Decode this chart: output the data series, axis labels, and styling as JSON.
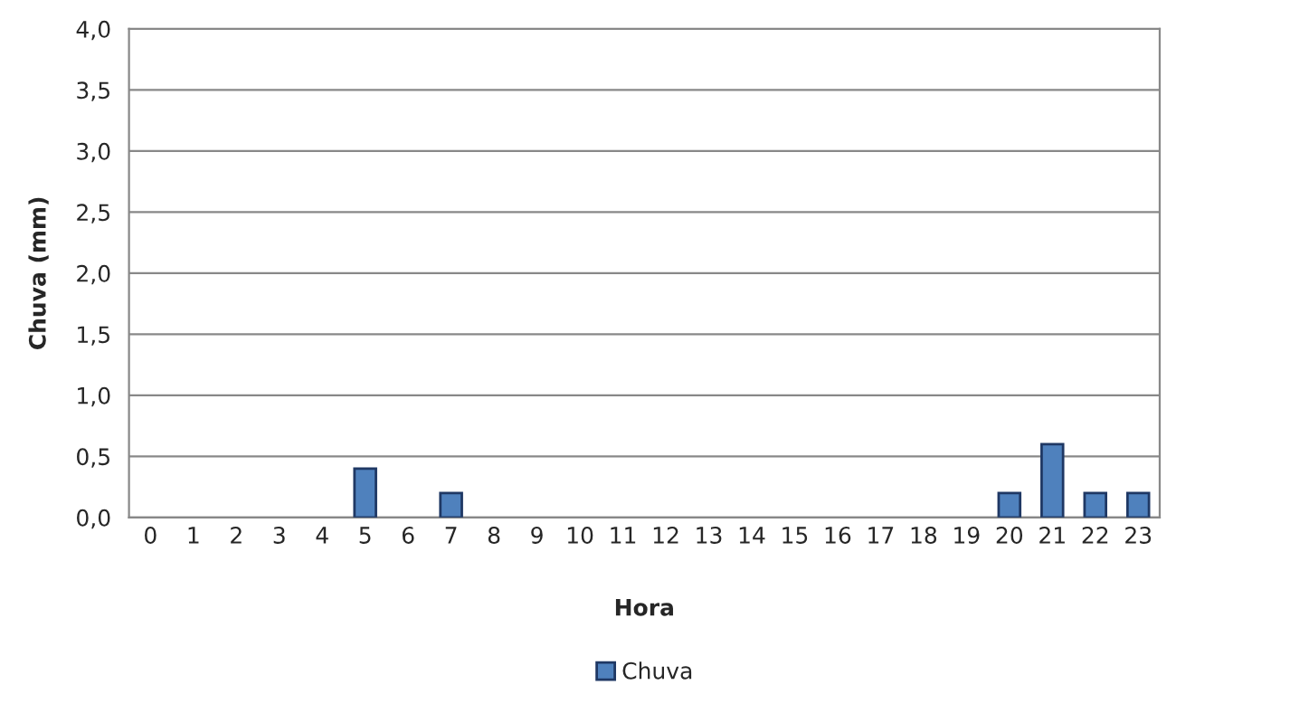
{
  "chart_data": {
    "type": "bar",
    "xlabel": "Hora",
    "ylabel": "Chuva (mm)",
    "categories": [
      "0",
      "1",
      "2",
      "3",
      "4",
      "5",
      "6",
      "7",
      "8",
      "9",
      "10",
      "11",
      "12",
      "13",
      "14",
      "15",
      "16",
      "17",
      "18",
      "19",
      "20",
      "21",
      "22",
      "23"
    ],
    "series": [
      {
        "name": "Chuva",
        "color": "#4f81bd",
        "values": [
          0,
          0,
          0,
          0,
          0,
          0.4,
          0,
          0.2,
          0,
          0,
          0,
          0,
          0,
          0,
          0,
          0,
          0,
          0,
          0,
          0,
          0.2,
          0.6,
          0.2,
          0.2
        ]
      }
    ],
    "ylim": [
      0,
      4
    ],
    "yticks": [
      {
        "value": 0,
        "label": "0,0"
      },
      {
        "value": 0.5,
        "label": "0,5"
      },
      {
        "value": 1,
        "label": "1,0"
      },
      {
        "value": 1.5,
        "label": "1,5"
      },
      {
        "value": 2,
        "label": "2,0"
      },
      {
        "value": 2.5,
        "label": "2,5"
      },
      {
        "value": 3,
        "label": "3,0"
      },
      {
        "value": 3.5,
        "label": "3,5"
      },
      {
        "value": 4,
        "label": "4,0"
      }
    ],
    "grid": "y",
    "legend": "bottom"
  }
}
